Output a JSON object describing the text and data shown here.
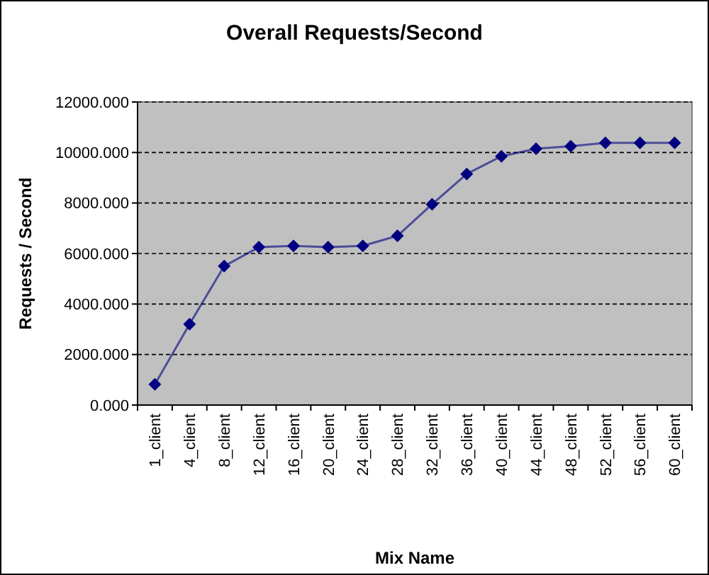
{
  "chart_data": {
    "type": "line",
    "title": "Overall Requests/Second",
    "xlabel": "Mix Name",
    "ylabel": "Requests / Second",
    "categories": [
      "1_client",
      "4_client",
      "8_client",
      "12_client",
      "16_client",
      "20_client",
      "24_client",
      "28_client",
      "32_client",
      "36_client",
      "40_client",
      "44_client",
      "48_client",
      "52_client",
      "56_client",
      "60_client"
    ],
    "series": [
      {
        "color": "#000080",
        "values": [
          820,
          3200,
          5500,
          6250,
          6300,
          6250,
          6300,
          6700,
          7950,
          9150,
          9850,
          10150,
          10250,
          10380,
          10380,
          10380
        ]
      }
    ],
    "ylim": [
      0,
      12000
    ],
    "yticks": [
      {
        "value": 0,
        "label": "0.000"
      },
      {
        "value": 2000,
        "label": "2000.000"
      },
      {
        "value": 4000,
        "label": "4000.000"
      },
      {
        "value": 6000,
        "label": "6000.000"
      },
      {
        "value": 8000,
        "label": "8000.000"
      },
      {
        "value": 10000,
        "label": "10000.000"
      },
      {
        "value": 12000,
        "label": "12000.000"
      }
    ],
    "grid": "y",
    "marker": "diamond",
    "line_style": "solid"
  }
}
